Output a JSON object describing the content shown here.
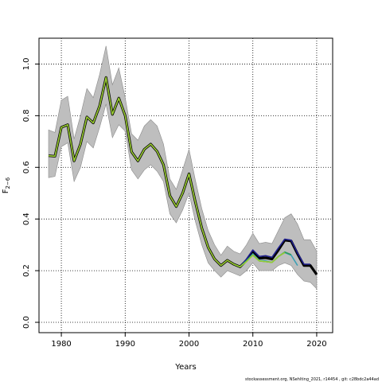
{
  "chart_data": {
    "type": "line",
    "title": "",
    "xlabel": "Years",
    "ylabel": "F",
    "ylabel_subscript": "2−6",
    "xlim": [
      1976.5,
      2022.5
    ],
    "ylim": [
      -0.04,
      1.1
    ],
    "x_ticks": [
      1980,
      1990,
      2000,
      2010,
      2020
    ],
    "x_tick_labels": [
      "1980",
      "1990",
      "2000",
      "2010",
      "2020"
    ],
    "y_ticks": [
      0.0,
      0.2,
      0.4,
      0.6,
      0.8,
      1.0
    ],
    "y_tick_labels": [
      "0.0",
      "0.2",
      "0.4",
      "0.6",
      "0.8",
      "1.0"
    ],
    "grid": true,
    "grid_style": "dotted",
    "band_color": "#bebebe",
    "band_edge_color": "#8a8a8a",
    "band": {
      "x": [
        1978,
        1979,
        1980,
        1981,
        1982,
        1983,
        1984,
        1985,
        1986,
        1987,
        1988,
        1989,
        1990,
        1991,
        1992,
        1993,
        1994,
        1995,
        1996,
        1997,
        1998,
        1999,
        2000,
        2001,
        2002,
        2003,
        2004,
        2005,
        2006,
        2007,
        2008,
        2009,
        2010,
        2011,
        2012,
        2013,
        2014,
        2015,
        2016,
        2017,
        2018,
        2019,
        2020
      ],
      "lower": [
        0.56,
        0.565,
        0.68,
        0.695,
        0.545,
        0.6,
        0.7,
        0.675,
        0.755,
        0.845,
        0.715,
        0.765,
        0.74,
        0.59,
        0.555,
        0.59,
        0.61,
        0.585,
        0.545,
        0.42,
        0.385,
        0.435,
        0.5,
        0.39,
        0.3,
        0.23,
        0.2,
        0.175,
        0.2,
        0.19,
        0.18,
        0.2,
        0.23,
        0.2,
        0.2,
        0.2,
        0.22,
        0.23,
        0.22,
        0.185,
        0.16,
        0.155,
        0.13
      ],
      "upper": [
        0.745,
        0.735,
        0.86,
        0.875,
        0.71,
        0.8,
        0.905,
        0.87,
        0.96,
        1.07,
        0.92,
        0.985,
        0.87,
        0.73,
        0.705,
        0.76,
        0.785,
        0.76,
        0.69,
        0.555,
        0.515,
        0.59,
        0.67,
        0.55,
        0.44,
        0.355,
        0.3,
        0.26,
        0.295,
        0.275,
        0.265,
        0.3,
        0.345,
        0.305,
        0.31,
        0.305,
        0.355,
        0.405,
        0.42,
        0.38,
        0.32,
        0.32,
        0.275
      ]
    },
    "series": [
      {
        "color": "#000000",
        "width": 3.2,
        "x": [
          1978,
          1979,
          1980,
          1981,
          1982,
          1983,
          1984,
          1985,
          1986,
          1987,
          1988,
          1989,
          1990,
          1991,
          1992,
          1993,
          1994,
          1995,
          1996,
          1997,
          1998,
          1999,
          2000,
          2001,
          2002,
          2003,
          2004,
          2005,
          2006,
          2007,
          2008,
          2009,
          2010,
          2011,
          2012,
          2013,
          2014,
          2015,
          2016,
          2017,
          2018,
          2019,
          2020
        ],
        "y": [
          0.645,
          0.643,
          0.755,
          0.765,
          0.625,
          0.69,
          0.795,
          0.772,
          0.838,
          0.948,
          0.805,
          0.868,
          0.8,
          0.66,
          0.625,
          0.67,
          0.69,
          0.662,
          0.61,
          0.49,
          0.448,
          0.5,
          0.575,
          0.465,
          0.365,
          0.29,
          0.245,
          0.22,
          0.24,
          0.225,
          0.215,
          0.24,
          0.275,
          0.248,
          0.25,
          0.245,
          0.28,
          0.318,
          0.315,
          0.265,
          0.22,
          0.22,
          0.185
        ]
      },
      {
        "color": "#1f1f8f",
        "width": 1.6,
        "x": [
          2008,
          2009,
          2010,
          2011,
          2012,
          2013,
          2014,
          2015,
          2016,
          2017,
          2018,
          2019
        ],
        "y": [
          0.215,
          0.245,
          0.28,
          0.255,
          0.258,
          0.252,
          0.288,
          0.322,
          0.318,
          0.268,
          0.225,
          0.225
        ]
      },
      {
        "color": "#3a9fb5",
        "width": 1.6,
        "x": [
          2008,
          2009,
          2010,
          2011,
          2012,
          2013,
          2014,
          2015,
          2016,
          2017
        ],
        "y": [
          0.215,
          0.238,
          0.265,
          0.24,
          0.238,
          0.232,
          0.255,
          0.27,
          0.26,
          0.22
        ]
      },
      {
        "color": "#2d9d5e",
        "width": 1.6,
        "x": [
          2007,
          2008,
          2009,
          2010,
          2011,
          2012,
          2013,
          2014,
          2015,
          2016
        ],
        "y": [
          0.225,
          0.215,
          0.238,
          0.26,
          0.238,
          0.235,
          0.232,
          0.255,
          0.272,
          0.262
        ]
      },
      {
        "color": "#9acd32",
        "width": 1.6,
        "x": [
          1978,
          1979,
          1980,
          1981,
          1982,
          1983,
          1984,
          1985,
          1986,
          1987,
          1988,
          1989,
          1990,
          1991,
          1992,
          1993,
          1994,
          1995,
          1996,
          1997,
          1998,
          1999,
          2000,
          2001,
          2002,
          2003,
          2004,
          2005,
          2006,
          2007,
          2008,
          2009,
          2010,
          2011,
          2012,
          2013,
          2014,
          2015
        ],
        "y": [
          0.645,
          0.643,
          0.755,
          0.765,
          0.625,
          0.69,
          0.795,
          0.772,
          0.838,
          0.948,
          0.805,
          0.868,
          0.8,
          0.66,
          0.625,
          0.67,
          0.69,
          0.662,
          0.61,
          0.49,
          0.448,
          0.5,
          0.575,
          0.465,
          0.365,
          0.29,
          0.245,
          0.22,
          0.24,
          0.225,
          0.215,
          0.235,
          0.26,
          0.238,
          0.235,
          0.232,
          0.255,
          0.27
        ]
      }
    ]
  },
  "footer": "stockassessment.org, NSehlting_2021, r14454 , git: c28bdc2a44ad"
}
